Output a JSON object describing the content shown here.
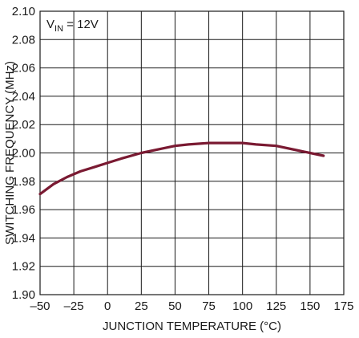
{
  "chart_data": {
    "type": "line",
    "title": "",
    "xlabel": "JUNCTION TEMPERATURE (°C)",
    "ylabel": "SWITCHING FREQUENCY (MHz)",
    "xlim": [
      -50,
      175
    ],
    "ylim": [
      1.9,
      2.1
    ],
    "x_ticks": [
      -50,
      -25,
      0,
      25,
      50,
      75,
      100,
      125,
      150,
      175
    ],
    "x_tick_labels": [
      "–50",
      "–25",
      "0",
      "25",
      "50",
      "75",
      "100",
      "125",
      "150",
      "175"
    ],
    "y_ticks": [
      1.9,
      1.92,
      1.94,
      1.96,
      1.98,
      2.0,
      2.02,
      2.04,
      2.06,
      2.08,
      2.1
    ],
    "y_tick_labels": [
      "1.90",
      "1.92",
      "1.94",
      "1.96",
      "1.98",
      "2.00",
      "2.02",
      "2.04",
      "2.06",
      "2.08",
      "2.10"
    ],
    "grid": true,
    "annotation": {
      "main": "V",
      "sub": "IN",
      "rest": " = 12V"
    },
    "series": [
      {
        "color": "#7a1a32",
        "x": [
          -50,
          -40,
          -30,
          -20,
          -10,
          0,
          10,
          25,
          40,
          50,
          60,
          75,
          90,
          100,
          110,
          125,
          140,
          150,
          160
        ],
        "y": [
          1.971,
          1.978,
          1.983,
          1.987,
          1.99,
          1.993,
          1.996,
          2.0,
          2.003,
          2.005,
          2.006,
          2.007,
          2.007,
          2.007,
          2.006,
          2.005,
          2.002,
          2.0,
          1.998
        ]
      }
    ]
  }
}
